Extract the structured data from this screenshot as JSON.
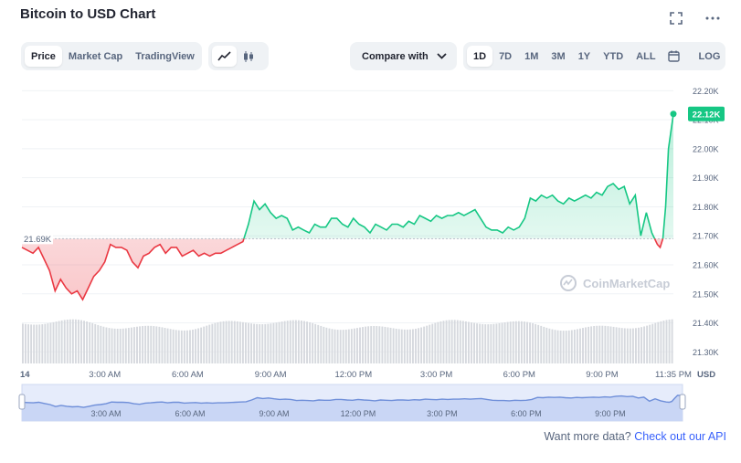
{
  "header": {
    "title": "Bitcoin to USD Chart",
    "fullscreen_icon": "fullscreen-icon",
    "more_icon": "more-options-icon"
  },
  "toolbar": {
    "view_tabs": [
      "Price",
      "Market Cap",
      "TradingView"
    ],
    "active_view": "Price",
    "chart_type_icons": [
      "line-chart-icon",
      "candlestick-icon"
    ],
    "active_chart_type": "line-chart-icon",
    "compare_label": "Compare with",
    "ranges": [
      "1D",
      "7D",
      "1M",
      "3M",
      "1Y",
      "YTD",
      "ALL"
    ],
    "active_range": "1D",
    "calendar_icon": "calendar-icon",
    "log_label": "LOG"
  },
  "chart_data": {
    "type": "line",
    "currency": "USD",
    "y_ticks": [
      "22.20K",
      "22.10K",
      "22.00K",
      "21.90K",
      "21.80K",
      "21.70K",
      "21.60K",
      "21.50K",
      "21.40K",
      "21.30K"
    ],
    "ylim": [
      21.26,
      22.22
    ],
    "reference_value": 21.69,
    "reference_label": "21.69K",
    "current_label": "22.12K",
    "x_ticks": [
      "14",
      "3:00 AM",
      "6:00 AM",
      "9:00 AM",
      "12:00 PM",
      "3:00 PM",
      "6:00 PM",
      "9:00 PM",
      "11:35 PM"
    ],
    "x_tick_hours": [
      0,
      3,
      6,
      9,
      12,
      15,
      18,
      21,
      23.58
    ],
    "x_range_hours": [
      0,
      23.58
    ],
    "watermark": "CoinMarketCap",
    "colors": {
      "up": "#16c784",
      "down": "#ea3943",
      "volume": "#d6d9de",
      "navigator": "#6f8fd9"
    },
    "series": [
      {
        "x": [
          0,
          0.2,
          0.4,
          0.6,
          0.8,
          1.0,
          1.2,
          1.4,
          1.6,
          1.8,
          2.0,
          2.2,
          2.4,
          2.6,
          2.8,
          3.0,
          3.2,
          3.4,
          3.6,
          3.8,
          4.0,
          4.2,
          4.4,
          4.6,
          4.8,
          5.0,
          5.2,
          5.4,
          5.6,
          5.8,
          6.0,
          6.2,
          6.4,
          6.6,
          6.8,
          7.0,
          7.2,
          7.4,
          7.6,
          7.8,
          8.0,
          8.2,
          8.4,
          8.6,
          8.8,
          9.0,
          9.2,
          9.4,
          9.6,
          9.8,
          10.0,
          10.2,
          10.4,
          10.6,
          10.8,
          11.0,
          11.2,
          11.4,
          11.6,
          11.8,
          12.0,
          12.2,
          12.4,
          12.6,
          12.8,
          13.0,
          13.2,
          13.4,
          13.6,
          13.8,
          14.0,
          14.2,
          14.4,
          14.6,
          14.8,
          15.0,
          15.2,
          15.4,
          15.6,
          15.8,
          16.0,
          16.2,
          16.4,
          16.6,
          16.8,
          17.0,
          17.2,
          17.4,
          17.6,
          17.8,
          18.0,
          18.2,
          18.4,
          18.6,
          18.8,
          19.0,
          19.2,
          19.4,
          19.6,
          19.8,
          20.0,
          20.2,
          20.4,
          20.6,
          20.8,
          21.0,
          21.2,
          21.4,
          21.6,
          21.8,
          22.0,
          22.2,
          22.4,
          22.6,
          22.8,
          23.0,
          23.1,
          23.2,
          23.3,
          23.4,
          23.58
        ],
        "values": [
          21.66,
          21.65,
          21.64,
          21.66,
          21.62,
          21.58,
          21.51,
          21.55,
          21.52,
          21.5,
          21.51,
          21.48,
          21.52,
          21.56,
          21.58,
          21.61,
          21.67,
          21.66,
          21.66,
          21.65,
          21.61,
          21.59,
          21.63,
          21.64,
          21.66,
          21.67,
          21.64,
          21.66,
          21.66,
          21.63,
          21.64,
          21.65,
          21.63,
          21.64,
          21.63,
          21.64,
          21.64,
          21.65,
          21.66,
          21.67,
          21.68,
          21.74,
          21.82,
          21.79,
          21.81,
          21.78,
          21.76,
          21.77,
          21.76,
          21.72,
          21.73,
          21.72,
          21.71,
          21.74,
          21.73,
          21.73,
          21.76,
          21.76,
          21.74,
          21.73,
          21.76,
          21.74,
          21.73,
          21.71,
          21.74,
          21.73,
          21.72,
          21.74,
          21.74,
          21.73,
          21.75,
          21.74,
          21.77,
          21.76,
          21.75,
          21.77,
          21.76,
          21.77,
          21.77,
          21.78,
          21.77,
          21.78,
          21.79,
          21.76,
          21.73,
          21.72,
          21.72,
          21.71,
          21.73,
          21.72,
          21.73,
          21.76,
          21.83,
          21.82,
          21.84,
          21.83,
          21.84,
          21.82,
          21.81,
          21.83,
          21.82,
          21.83,
          21.84,
          21.83,
          21.85,
          21.84,
          21.87,
          21.88,
          21.86,
          21.87,
          21.81,
          21.84,
          21.7,
          21.78,
          21.71,
          21.67,
          21.66,
          21.69,
          21.8,
          22.0,
          22.12
        ]
      }
    ]
  },
  "footer": {
    "prompt": "Want more data?",
    "link": "Check out our API"
  }
}
